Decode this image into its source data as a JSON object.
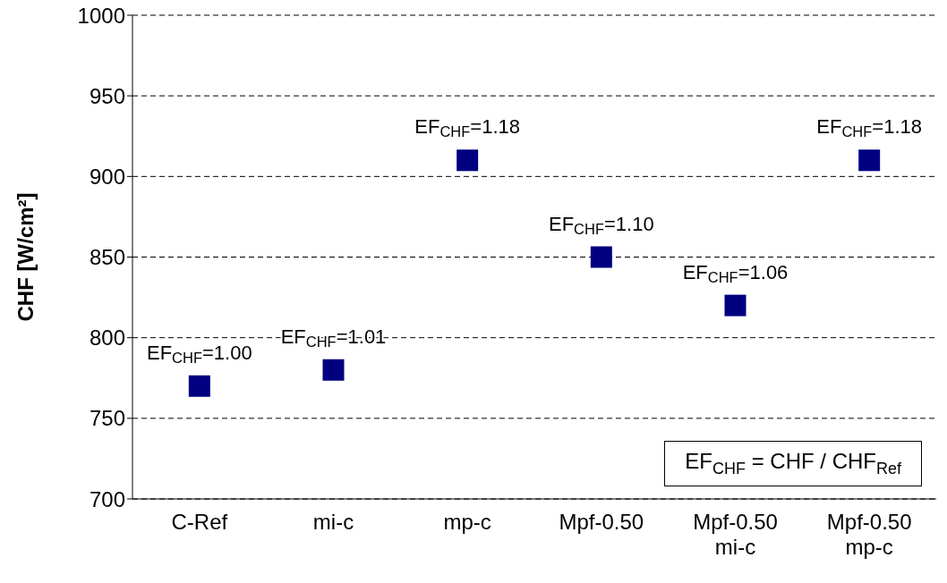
{
  "chart_data": {
    "type": "scatter",
    "ylabel": "CHF [W/cm²]",
    "categories": [
      "C-Ref",
      "mi-c",
      "mp-c",
      "Mpf-0.50",
      "Mpf-0.50 mi-c",
      "Mpf-0.50 mp-c"
    ],
    "series": [
      {
        "color": "#000080",
        "values": [
          770,
          780,
          910,
          850,
          820,
          910
        ]
      }
    ],
    "marker": "square",
    "ylim": [
      700,
      1000
    ],
    "yticks": [
      700,
      750,
      800,
      850,
      900,
      950,
      1000
    ],
    "grid": "y",
    "legend": false,
    "annotations": [
      {
        "text": "EF$_{CHF}$=1.00",
        "x": "C-Ref",
        "y": 770
      },
      {
        "text": "EF$_{CHF}$=1.01",
        "x": "mi-c",
        "y": 780
      },
      {
        "text": "EF$_{CHF}$=1.18",
        "x": "mp-c",
        "y": 910
      },
      {
        "text": "EF$_{CHF}$=1.10",
        "x": "Mpf-0.50",
        "y": 850
      },
      {
        "text": "EF$_{CHF}$=1.06",
        "x": "Mpf-0.50 mi-c",
        "y": 820
      },
      {
        "text": "EF$_{CHF}$=1.18",
        "x": "Mpf-0.50 mp-c",
        "y": 910
      },
      "EF$_{CHF}$ = CHF / CHF$_{Ref}$"
    ]
  }
}
